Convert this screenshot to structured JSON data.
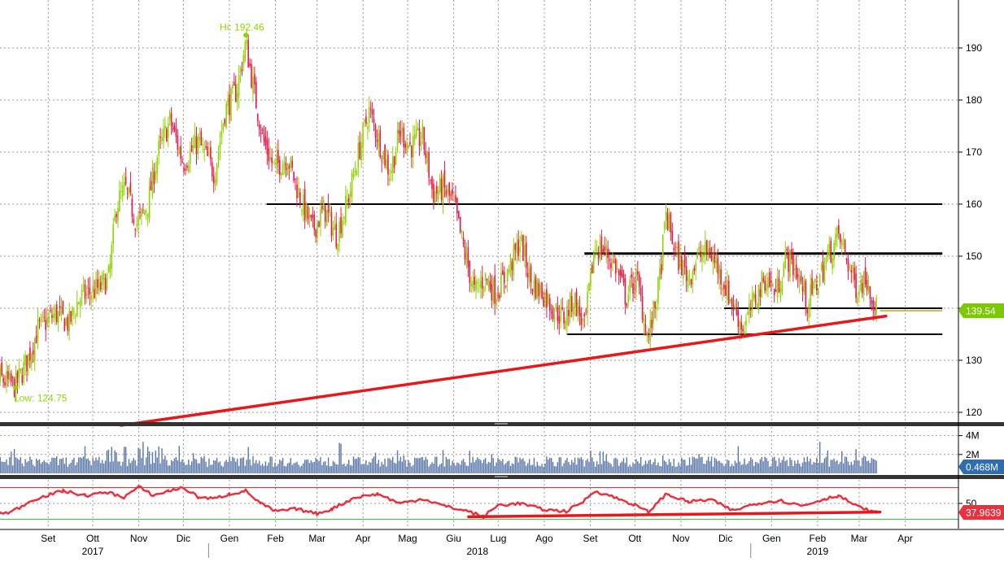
{
  "chart_data": [
    {
      "panel": "price",
      "type": "candlestick",
      "ylim": [
        117,
        200
      ],
      "y_ticks": [
        120,
        130,
        140,
        150,
        160,
        170,
        180,
        190
      ],
      "grid": true,
      "axis_side": "right",
      "current_value": "139.54",
      "annotations": {
        "high": "Hi: 192.46",
        "low": "Low: 124.75"
      },
      "high_point": {
        "date": "2018-01-26",
        "y": 192.46
      },
      "low_point": {
        "date": "2017-08-24",
        "y": 124.75
      },
      "price_path": [
        [
          "2017-08-01",
          130
        ],
        [
          "2017-08-10",
          127
        ],
        [
          "2017-08-24",
          125
        ],
        [
          "2017-09-01",
          130
        ],
        [
          "2017-09-08",
          136
        ],
        [
          "2017-09-20",
          139
        ],
        [
          "2017-09-29",
          137
        ],
        [
          "2017-10-06",
          142
        ],
        [
          "2017-10-20",
          144
        ],
        [
          "2017-10-26",
          146
        ],
        [
          "2017-10-31",
          160
        ],
        [
          "2017-11-06",
          163
        ],
        [
          "2017-11-14",
          156
        ],
        [
          "2017-11-21",
          160
        ],
        [
          "2017-11-28",
          170
        ],
        [
          "2017-12-06",
          176
        ],
        [
          "2017-12-15",
          168
        ],
        [
          "2017-12-25",
          172
        ],
        [
          "2018-01-05",
          166
        ],
        [
          "2018-01-12",
          178
        ],
        [
          "2018-01-20",
          182
        ],
        [
          "2018-01-26",
          191
        ],
        [
          "2018-02-01",
          181
        ],
        [
          "2018-02-07",
          172
        ],
        [
          "2018-02-14",
          167
        ],
        [
          "2018-02-23",
          169
        ],
        [
          "2018-03-05",
          160
        ],
        [
          "2018-03-12",
          155
        ],
        [
          "2018-03-20",
          159
        ],
        [
          "2018-03-28",
          154
        ],
        [
          "2018-04-05",
          161
        ],
        [
          "2018-04-12",
          170
        ],
        [
          "2018-04-19",
          178
        ],
        [
          "2018-04-26",
          172
        ],
        [
          "2018-05-03",
          166
        ],
        [
          "2018-05-10",
          174
        ],
        [
          "2018-05-17",
          171
        ],
        [
          "2018-05-25",
          173
        ],
        [
          "2018-06-01",
          162
        ],
        [
          "2018-06-08",
          163
        ],
        [
          "2018-06-15",
          160
        ],
        [
          "2018-06-22",
          151
        ],
        [
          "2018-06-29",
          143
        ],
        [
          "2018-07-06",
          146
        ],
        [
          "2018-07-13",
          143
        ],
        [
          "2018-07-20",
          146
        ],
        [
          "2018-07-30",
          153
        ],
        [
          "2018-08-06",
          145
        ],
        [
          "2018-08-14",
          143
        ],
        [
          "2018-08-21",
          140
        ],
        [
          "2018-08-28",
          138
        ],
        [
          "2018-09-04",
          142
        ],
        [
          "2018-09-11",
          136
        ],
        [
          "2018-09-18",
          152
        ],
        [
          "2018-09-25",
          151
        ],
        [
          "2018-10-02",
          148
        ],
        [
          "2018-10-09",
          142
        ],
        [
          "2018-10-16",
          146
        ],
        [
          "2018-10-24",
          134
        ],
        [
          "2018-10-31",
          144
        ],
        [
          "2018-11-05",
          158
        ],
        [
          "2018-11-12",
          150
        ],
        [
          "2018-11-20",
          146
        ],
        [
          "2018-11-27",
          150
        ],
        [
          "2018-12-04",
          151
        ],
        [
          "2018-12-11",
          147
        ],
        [
          "2018-12-18",
          142
        ],
        [
          "2018-12-27",
          136
        ],
        [
          "2019-01-04",
          142
        ],
        [
          "2019-01-11",
          146
        ],
        [
          "2019-01-18",
          143
        ],
        [
          "2019-01-25",
          150
        ],
        [
          "2019-02-01",
          147
        ],
        [
          "2019-02-08",
          141
        ],
        [
          "2019-02-15",
          145
        ],
        [
          "2019-02-22",
          150
        ],
        [
          "2019-03-01",
          154
        ],
        [
          "2019-03-06",
          150
        ],
        [
          "2019-03-13",
          144
        ],
        [
          "2019-03-20",
          146
        ],
        [
          "2019-03-27",
          139.54
        ]
      ],
      "reference_lines": [
        {
          "name": "resistance-160",
          "y": 160,
          "x_from": "2018-02-09",
          "x_to": "2019-05-10",
          "color": "#000000"
        },
        {
          "name": "resistance-150",
          "y": 150.5,
          "x_from": "2018-09-11",
          "x_to": "2019-05-10",
          "color": "#000000"
        },
        {
          "name": "support-140",
          "y": 140,
          "x_from": "2018-12-14",
          "x_to": "2019-05-10",
          "color": "#000000"
        },
        {
          "name": "support-135",
          "y": 135,
          "x_from": "2018-08-30",
          "x_to": "2019-05-10",
          "color": "#000000"
        },
        {
          "name": "current-level",
          "y": 139.54,
          "x_from": "2019-03-29",
          "x_to": "2019-05-10",
          "color": "#c8a800"
        }
      ],
      "trendline": {
        "from": [
          "2017-11-03",
          117.5
        ],
        "to": [
          "2019-04-02",
          138.5
        ],
        "color": "#e8171b"
      }
    },
    {
      "panel": "volume",
      "type": "bar",
      "ylim": [
        0,
        5000000
      ],
      "y_ticks": [
        "4M",
        "2M"
      ],
      "current_value": "0.468M",
      "color": "#5a77a8"
    },
    {
      "panel": "rsi",
      "type": "line",
      "ylim": [
        20,
        80
      ],
      "y_ticks": [
        "50"
      ],
      "current_value": "37.9639",
      "upper_band": 70,
      "lower_band": 30,
      "rsi_path": [
        [
          "2017-08-01",
          40
        ],
        [
          "2017-08-20",
          38
        ],
        [
          "2017-09-05",
          55
        ],
        [
          "2017-09-25",
          66
        ],
        [
          "2017-10-10",
          60
        ],
        [
          "2017-10-25",
          64
        ],
        [
          "2017-11-05",
          58
        ],
        [
          "2017-11-15",
          71
        ],
        [
          "2017-11-25",
          60
        ],
        [
          "2017-12-05",
          66
        ],
        [
          "2017-12-15",
          70
        ],
        [
          "2017-12-25",
          58
        ],
        [
          "2018-01-05",
          56
        ],
        [
          "2018-01-15",
          62
        ],
        [
          "2018-01-26",
          66
        ],
        [
          "2018-02-05",
          50
        ],
        [
          "2018-02-15",
          40
        ],
        [
          "2018-03-01",
          43
        ],
        [
          "2018-03-15",
          37
        ],
        [
          "2018-03-25",
          43
        ],
        [
          "2018-04-10",
          58
        ],
        [
          "2018-04-25",
          62
        ],
        [
          "2018-05-10",
          50
        ],
        [
          "2018-05-25",
          56
        ],
        [
          "2018-06-10",
          46
        ],
        [
          "2018-06-25",
          40
        ],
        [
          "2018-07-05",
          33
        ],
        [
          "2018-07-15",
          48
        ],
        [
          "2018-07-30",
          50
        ],
        [
          "2018-08-15",
          42
        ],
        [
          "2018-08-30",
          40
        ],
        [
          "2018-09-10",
          52
        ],
        [
          "2018-09-18",
          66
        ],
        [
          "2018-10-01",
          58
        ],
        [
          "2018-10-15",
          48
        ],
        [
          "2018-10-24",
          39
        ],
        [
          "2018-11-05",
          62
        ],
        [
          "2018-11-20",
          52
        ],
        [
          "2018-12-05",
          55
        ],
        [
          "2018-12-20",
          41
        ],
        [
          "2019-01-05",
          50
        ],
        [
          "2019-01-20",
          54
        ],
        [
          "2019-02-05",
          47
        ],
        [
          "2019-02-20",
          56
        ],
        [
          "2019-03-01",
          60
        ],
        [
          "2019-03-15",
          45
        ],
        [
          "2019-03-27",
          37.96
        ]
      ],
      "trendline": {
        "from": [
          "2018-06-25",
          33
        ],
        "to": [
          "2019-03-29",
          39
        ],
        "color": "#e8171b"
      }
    }
  ],
  "x_axis": {
    "months": [
      {
        "label": "Set",
        "date": "2017-09-15"
      },
      {
        "label": "Ott",
        "date": "2017-10-15"
      },
      {
        "label": "Nov",
        "date": "2017-11-15"
      },
      {
        "label": "Dic",
        "date": "2017-12-15"
      },
      {
        "label": "Gen",
        "date": "2018-01-15"
      },
      {
        "label": "Feb",
        "date": "2018-02-15"
      },
      {
        "label": "Mar",
        "date": "2018-03-15"
      },
      {
        "label": "Apr",
        "date": "2018-04-15"
      },
      {
        "label": "Mag",
        "date": "2018-05-15"
      },
      {
        "label": "Giu",
        "date": "2018-06-15"
      },
      {
        "label": "Lug",
        "date": "2018-07-15"
      },
      {
        "label": "Ago",
        "date": "2018-08-15"
      },
      {
        "label": "Set",
        "date": "2018-09-15"
      },
      {
        "label": "Ott",
        "date": "2018-10-15"
      },
      {
        "label": "Nov",
        "date": "2018-11-15"
      },
      {
        "label": "Dic",
        "date": "2018-12-15"
      },
      {
        "label": "Gen",
        "date": "2019-01-15"
      },
      {
        "label": "Feb",
        "date": "2019-02-15"
      },
      {
        "label": "Mar",
        "date": "2019-03-15"
      },
      {
        "label": "Apr",
        "date": "2019-04-15"
      }
    ],
    "years": [
      {
        "label": "2017",
        "date": "2017-10-15"
      },
      {
        "label": "2018",
        "date": "2018-07-01"
      },
      {
        "label": "2019",
        "date": "2019-02-15"
      }
    ],
    "year_separators": [
      "2018-01-01",
      "2019-01-01"
    ]
  },
  "colors": {
    "up": "#8fd400",
    "down": "#e8174a",
    "trend": "#e8171b",
    "volume": "#5a77a8",
    "rsi_line": "#e8323f",
    "price_badge": "#7dc900",
    "volume_badge": "#2f6db3",
    "rsi_badge": "#e8323f",
    "grid": "#9a9a9a"
  }
}
